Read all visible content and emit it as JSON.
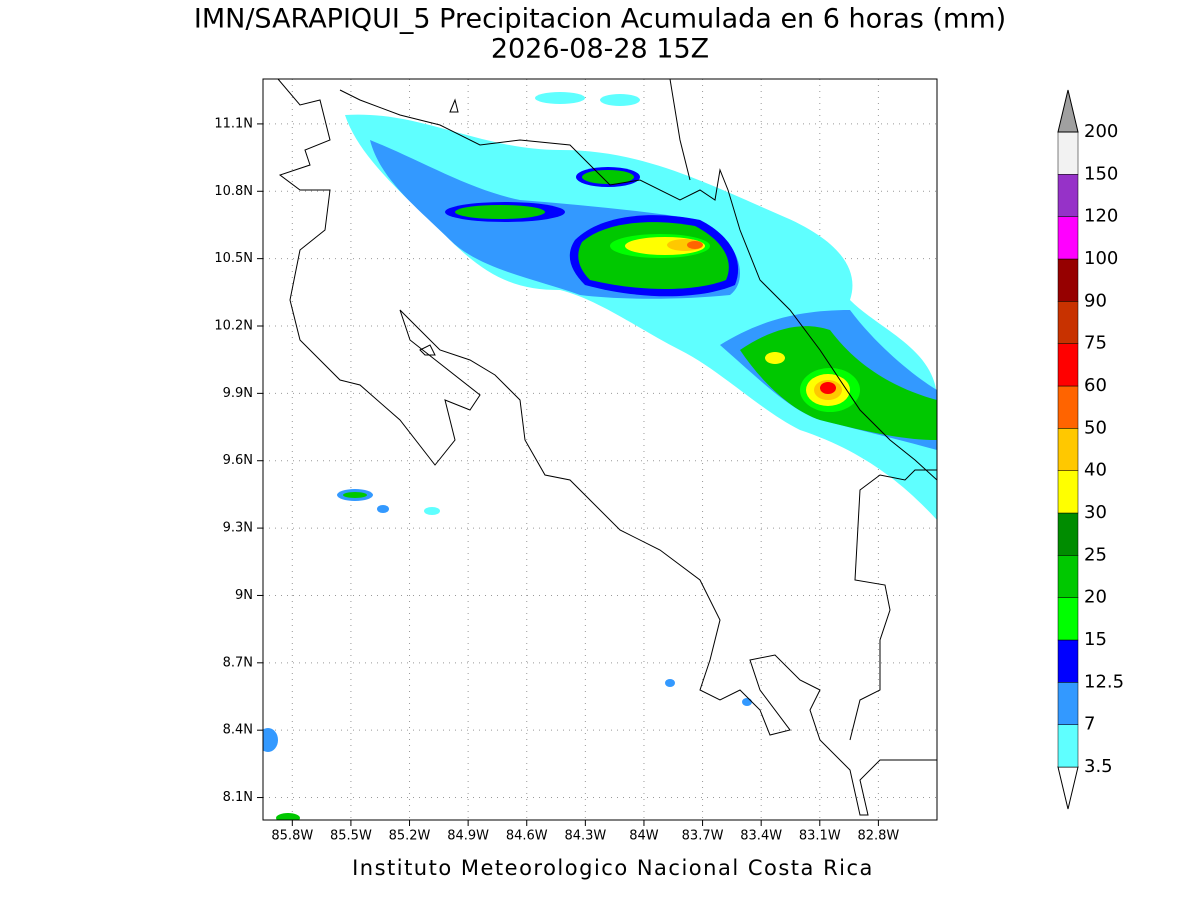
{
  "map": {
    "title": "IMN/SARAPIQUI_5 Precipitacion Acumulada en 6 horas (mm)",
    "subtitle": "2026-08-28 15Z",
    "footer": "Instituto Meteorologico Nacional Costa Rica",
    "xlim": [
      -85.95,
      -82.5
    ],
    "ylim": [
      8.0,
      11.3
    ],
    "xticks": [
      {
        "value": -85.8,
        "label": "85.8W"
      },
      {
        "value": -85.5,
        "label": "85.5W"
      },
      {
        "value": -85.2,
        "label": "85.2W"
      },
      {
        "value": -84.9,
        "label": "84.9W"
      },
      {
        "value": -84.6,
        "label": "84.6W"
      },
      {
        "value": -84.3,
        "label": "84.3W"
      },
      {
        "value": -84.0,
        "label": "84W"
      },
      {
        "value": -83.7,
        "label": "83.7W"
      },
      {
        "value": -83.4,
        "label": "83.4W"
      },
      {
        "value": -83.1,
        "label": "83.1W"
      },
      {
        "value": -82.8,
        "label": "82.8W"
      }
    ],
    "yticks": [
      {
        "value": 8.1,
        "label": "8.1N"
      },
      {
        "value": 8.4,
        "label": "8.4N"
      },
      {
        "value": 8.7,
        "label": "8.7N"
      },
      {
        "value": 9.0,
        "label": "9N"
      },
      {
        "value": 9.3,
        "label": "9.3N"
      },
      {
        "value": 9.6,
        "label": "9.6N"
      },
      {
        "value": 9.9,
        "label": "9.9N"
      },
      {
        "value": 10.2,
        "label": "10.2N"
      },
      {
        "value": 10.5,
        "label": "10.5N"
      },
      {
        "value": 10.8,
        "label": "10.8N"
      },
      {
        "value": 11.1,
        "label": "11.1N"
      }
    ],
    "grid": true,
    "colorbar": {
      "levels": [
        3.5,
        7,
        12.5,
        15,
        20,
        25,
        30,
        40,
        50,
        60,
        75,
        90,
        100,
        120,
        150,
        200
      ],
      "colors": [
        "#ffffff",
        "#5fffff",
        "#3399ff",
        "#0000ff",
        "#00ff00",
        "#00c800",
        "#008c00",
        "#ffff00",
        "#ffc800",
        "#ff6400",
        "#ff0000",
        "#c83200",
        "#960000",
        "#ff00ff",
        "#9632c8",
        "#f2f2f2",
        "#a0a0a0"
      ]
    }
  }
}
